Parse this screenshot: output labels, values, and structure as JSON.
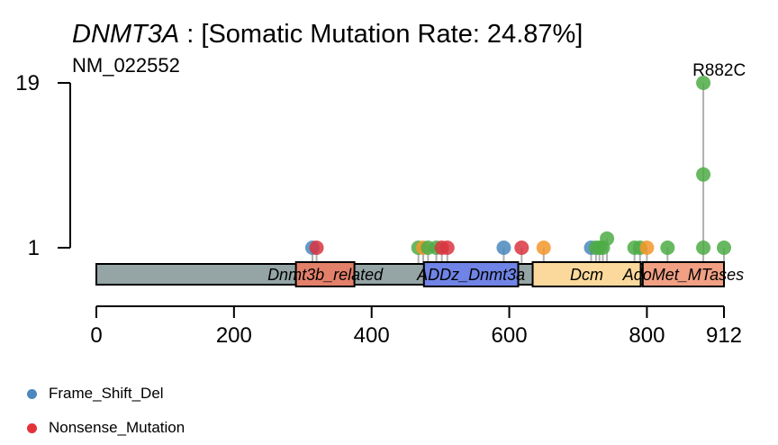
{
  "chart_data": {
    "type": "lollipop",
    "gene": "DNMT3A",
    "title_rest": " : [Somatic Mutation Rate: 24.87%]",
    "transcript": "NM_022552",
    "protein_length": 912,
    "x_ticks": [
      0,
      200,
      400,
      600,
      800,
      912
    ],
    "y_ticks": [
      1,
      19
    ],
    "ylim": [
      1,
      19
    ],
    "annotation": "R882C",
    "domains": [
      {
        "name": "Dnmt3b_related",
        "start": 290,
        "end": 375,
        "color": "#e3806a"
      },
      {
        "name": "ADDz_Dnmt3a",
        "start": 476,
        "end": 613,
        "color": "#6f84e6"
      },
      {
        "name": "Dcm",
        "start": 634,
        "end": 791,
        "color": "#fbd99c"
      },
      {
        "name": "AdoMet_MTases",
        "start": 794,
        "end": 912,
        "color": "#f1a084"
      }
    ],
    "mutations": [
      {
        "pos": 314,
        "count": 1,
        "type": "Frame_Shift_Del"
      },
      {
        "pos": 320,
        "count": 1,
        "type": "Nonsense_Mutation"
      },
      {
        "pos": 468,
        "count": 1,
        "type": "Missense"
      },
      {
        "pos": 475,
        "count": 1,
        "type": "Splice"
      },
      {
        "pos": 482,
        "count": 1,
        "type": "Missense"
      },
      {
        "pos": 494,
        "count": 1,
        "type": "Missense"
      },
      {
        "pos": 502,
        "count": 1,
        "type": "Nonsense_Mutation"
      },
      {
        "pos": 510,
        "count": 1,
        "type": "Nonsense_Mutation"
      },
      {
        "pos": 592,
        "count": 1,
        "type": "Frame_Shift_Del"
      },
      {
        "pos": 618,
        "count": 1,
        "type": "Nonsense_Mutation"
      },
      {
        "pos": 650,
        "count": 1,
        "type": "Splice"
      },
      {
        "pos": 719,
        "count": 1,
        "type": "Frame_Shift_Del"
      },
      {
        "pos": 726,
        "count": 1,
        "type": "Missense"
      },
      {
        "pos": 731,
        "count": 1,
        "type": "Missense"
      },
      {
        "pos": 736,
        "count": 1,
        "type": "Missense"
      },
      {
        "pos": 742,
        "count": 2,
        "type": "Missense"
      },
      {
        "pos": 782,
        "count": 1,
        "type": "Missense"
      },
      {
        "pos": 790,
        "count": 1,
        "type": "Missense"
      },
      {
        "pos": 800,
        "count": 1,
        "type": "Splice"
      },
      {
        "pos": 830,
        "count": 1,
        "type": "Missense"
      },
      {
        "pos": 882,
        "count": 1,
        "type": "Missense"
      },
      {
        "pos": 882,
        "count": 9,
        "type": "Missense"
      },
      {
        "pos": 882,
        "count": 19,
        "type": "Missense"
      },
      {
        "pos": 912,
        "count": 1,
        "type": "Missense"
      }
    ],
    "legend": [
      {
        "label": "Frame_Shift_Del",
        "color": "#4a88bd"
      },
      {
        "label": "Nonsense_Mutation",
        "color": "#e3323a"
      }
    ],
    "colors": {
      "Frame_Shift_Del": "#4a88bd",
      "Nonsense_Mutation": "#d93540",
      "Missense": "#4eac46",
      "Splice": "#f4962a",
      "protein_bar": "#95a5a6",
      "stem": "#b0b0b0"
    }
  }
}
